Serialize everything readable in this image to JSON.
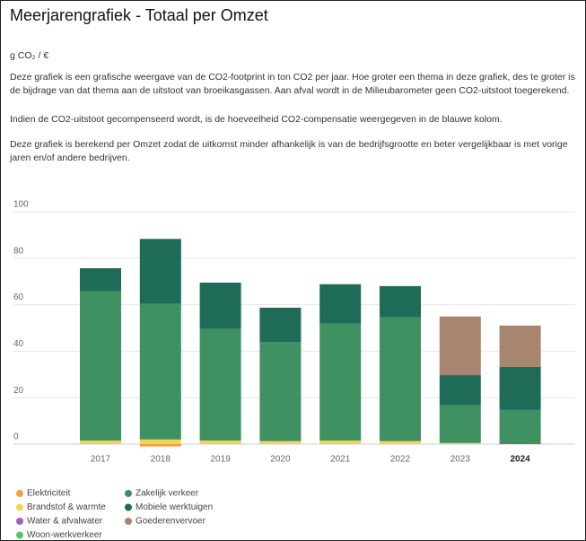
{
  "chart_data": {
    "type": "stacked_bar",
    "title": "Meerjarengrafiek - Totaal per Omzet",
    "unit": "g CO₂ / €",
    "paragraphs": [
      "Deze grafiek is een grafische weergave van de CO2-footprint in ton CO2 per jaar. Hoe groter een thema in deze grafiek, des te groter is de bijdrage van dat thema aan de uitstoot van broeikasgassen. Aan afval wordt in de Milieubarometer geen CO2-uitstoot toegerekend.",
      "Indien de CO2-uitstoot gecompenseerd wordt, is de hoeveelheid CO2-compensatie weergegeven in de blauwe kolom.",
      "Deze grafiek is berekend per Omzet zodat de uitkomst minder afhankelijk is van de bedrijfsgrootte en beter vergelijkbaar is met vorige jaren en/of andere bedrijven."
    ],
    "categories": [
      "2017",
      "2018",
      "2019",
      "2020",
      "2021",
      "2022",
      "2023",
      "2024"
    ],
    "series": [
      {
        "name": "Elektriciteit",
        "color": "#f5a03c",
        "values": [
          0,
          -1,
          0,
          0,
          0,
          0,
          0,
          0
        ]
      },
      {
        "name": "Brandstof & warmte",
        "color": "#f2d35a",
        "values": [
          1.5,
          2,
          1.5,
          1.3,
          1.5,
          1.3,
          0.5,
          0
        ]
      },
      {
        "name": "Water & afvalwater",
        "color": "#a35fc6",
        "values": [
          0,
          0,
          0,
          0,
          0,
          0,
          0,
          0
        ]
      },
      {
        "name": "Woon-werkverkeer",
        "color": "#5cc26a",
        "values": [
          0,
          0,
          0,
          0,
          0,
          0,
          0,
          0
        ]
      },
      {
        "name": "Zakelijk verkeer",
        "color": "#3f9161",
        "values": [
          64.2,
          58.3,
          48,
          42.7,
          50.3,
          53.2,
          16.2,
          14.7
        ]
      },
      {
        "name": "Mobiele werktuigen",
        "color": "#1e6b58",
        "values": [
          10,
          28,
          20,
          14.7,
          17,
          13.5,
          13,
          18.5
        ]
      },
      {
        "name": "Goederenvervoer",
        "color": "#a8856f",
        "values": [
          0,
          0,
          0,
          0,
          0,
          0,
          25.2,
          17.8
        ]
      }
    ],
    "ylim": [
      0,
      100
    ],
    "yticks": [
      0,
      20,
      40,
      60,
      80,
      100
    ],
    "grid": true
  }
}
